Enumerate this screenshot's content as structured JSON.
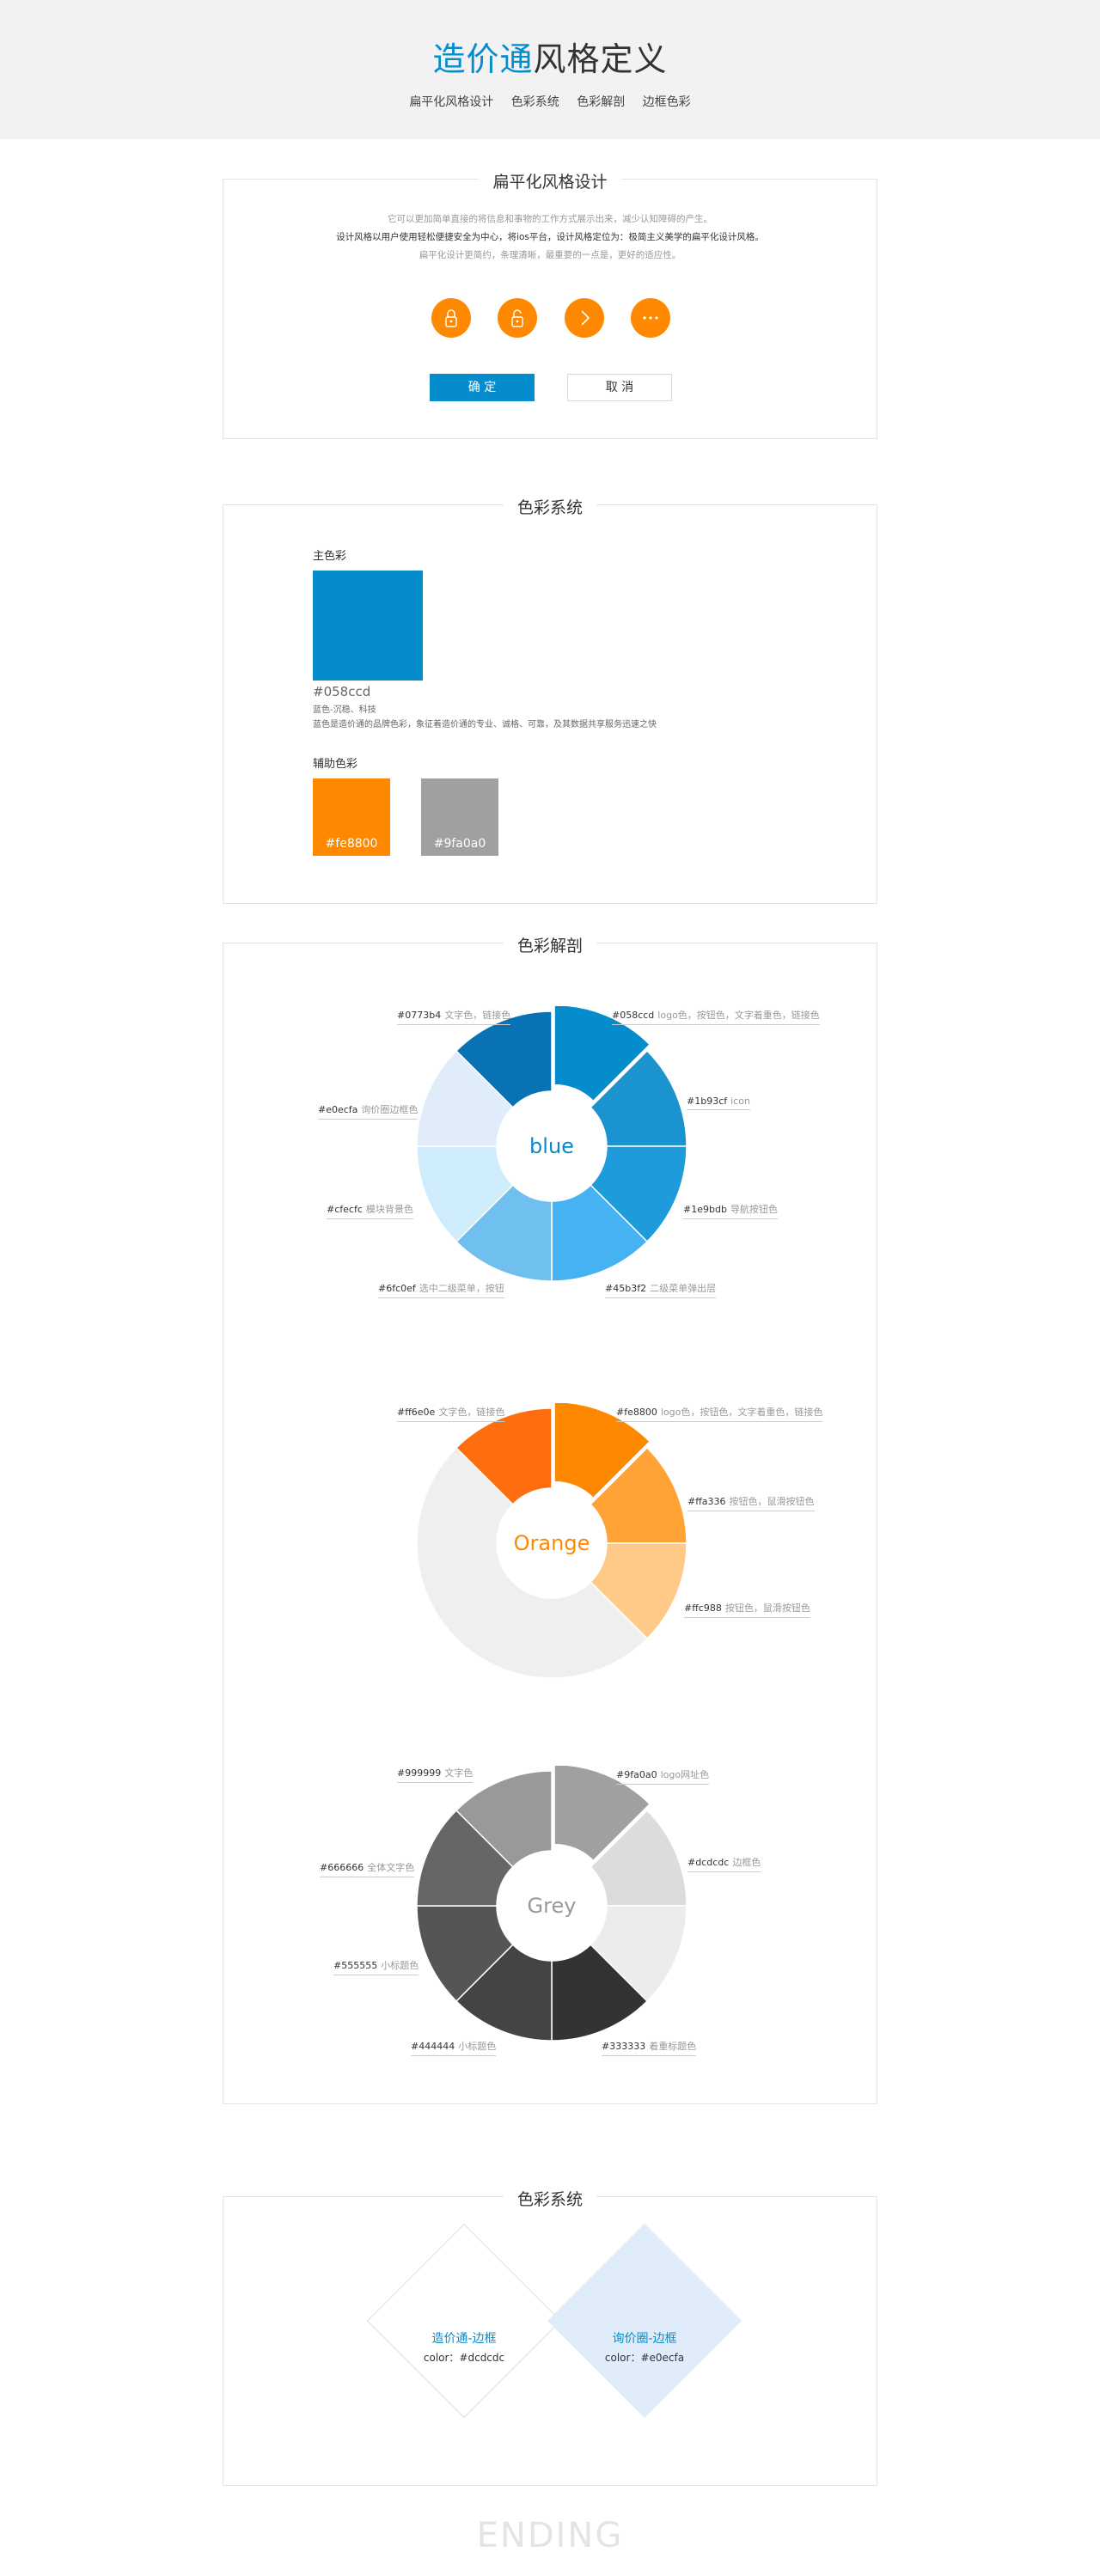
{
  "header": {
    "title_blue": "造价通",
    "title_dark": "风格定义",
    "nav": [
      "扁平化风格设计",
      "色彩系统",
      "色彩解剖",
      "边框色彩"
    ]
  },
  "flat": {
    "title": "扁平化风格设计",
    "desc_1": "它可以更加简单直接的将信息和事物的工作方式展示出来，减少认知障碍的产生。",
    "desc_2": "设计风格以用户使用轻松便捷安全为中心，将ios平台，设计风格定位为：极简主义美学的扁平化设计风格。",
    "desc_3": "扁平化设计更简约，条理清晰，最重要的一点是，更好的适应性。",
    "icons": [
      "lock-closed-icon",
      "lock-open-icon",
      "chevron-right-icon",
      "more-icon"
    ],
    "ok_label": "确 定",
    "cancel_label": "取 消"
  },
  "color_system": {
    "title": "色彩系统",
    "main_label": "主色彩",
    "main_hex": "#058ccd",
    "main_keywords": "蓝色-沉稳、科技",
    "main_desc": "蓝色是造价通的品牌色彩，象征着造价通的专业、诚格、可靠，及其数据共享服务迅速之快",
    "aux_label": "辅助色彩",
    "aux": [
      {
        "hex": "#fe8800",
        "label": "#fe8800"
      },
      {
        "hex": "#9fa0a0",
        "label": "#9fa0a0"
      }
    ]
  },
  "anatomy": {
    "title": "色彩解剖",
    "blue": {
      "center": "blue",
      "center_color": "#058ccd",
      "segments": [
        {
          "color": "#058ccd",
          "code": "#058ccd",
          "desc": "logo色，按钮色，文字着重色，链接色"
        },
        {
          "color": "#1b93cf",
          "code": "#1b93cf",
          "desc": "icon"
        },
        {
          "color": "#1e9bdb",
          "code": "#1e9bdb",
          "desc": "导航按钮色"
        },
        {
          "color": "#45b3f2",
          "code": "#45b3f2",
          "desc": "二级菜单弹出层"
        },
        {
          "color": "#6fc0ef",
          "code": "#6fc0ef",
          "desc": "选中二级菜单，按钮"
        },
        {
          "color": "#cfecfc",
          "code": "#cfecfc",
          "desc": "模块背景色"
        },
        {
          "color": "#e0ecfa",
          "code": "#e0ecfa",
          "desc": "询价圈边框色"
        },
        {
          "color": "#0773b4",
          "code": "#0773b4",
          "desc": "文字色，链接色"
        }
      ]
    },
    "orange": {
      "center": "Orange",
      "center_color": "#fe8800",
      "segments": [
        {
          "color": "#fe8800",
          "code": "#fe8800",
          "desc": "logo色，按钮色，文字着重色，链接色"
        },
        {
          "color": "#ffa336",
          "code": "#ffa336",
          "desc": "按钮色，鼠滑按钮色"
        },
        {
          "color": "#ffc988",
          "code": "#ffc988",
          "desc": "按钮色，鼠滑按钮色"
        },
        {
          "color": "#efefef",
          "code": "",
          "desc": ""
        },
        {
          "color": "#ff6e0e",
          "code": "#ff6e0e",
          "desc": "文字色，链接色"
        }
      ]
    },
    "grey": {
      "center": "Grey",
      "center_color": "#999999",
      "segments": [
        {
          "color": "#9fa0a0",
          "code": "#9fa0a0",
          "desc": "logo网址色"
        },
        {
          "color": "#dcdcdc",
          "code": "#dcdcdc",
          "desc": "边框色"
        },
        {
          "color": "#ececec",
          "code": "",
          "desc": ""
        },
        {
          "color": "#333333",
          "code": "#333333",
          "desc": "着重标题色"
        },
        {
          "color": "#444444",
          "code": "#444444",
          "desc": "小标题色"
        },
        {
          "color": "#555555",
          "code": "#555555",
          "desc": "小标题色"
        },
        {
          "color": "#666666",
          "code": "#666666",
          "desc": "全体文字色"
        },
        {
          "color": "#999999",
          "code": "#999999",
          "desc": "文字色"
        }
      ]
    }
  },
  "borders": {
    "title": "色彩系统",
    "items": [
      {
        "name": "造价通-边框",
        "color_text": "color：#dcdcdc",
        "border": "#dcdcdc",
        "fill": "#ffffff"
      },
      {
        "name": "询价圈-边框",
        "color_text": "color：#e0ecfa",
        "border": "#e0ecfa",
        "fill": "#e0ecfa"
      }
    ]
  },
  "ending": "ENDING"
}
